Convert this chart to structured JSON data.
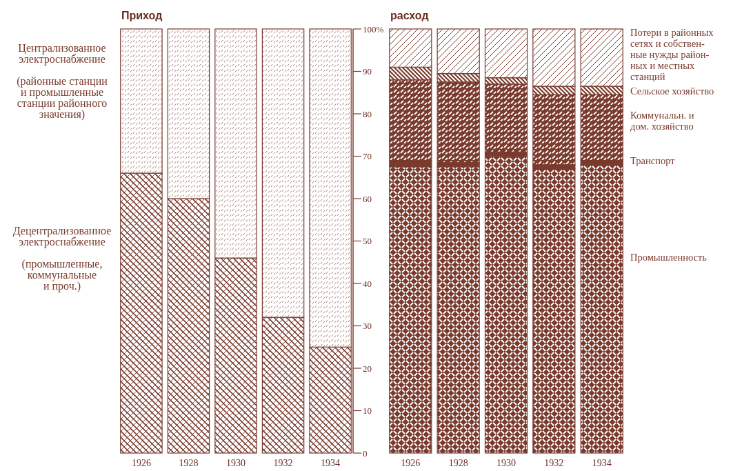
{
  "chart_data": [
    {
      "type": "bar",
      "title": "Приход",
      "stacked": true,
      "categories": [
        "1926",
        "1928",
        "1930",
        "1932",
        "1934"
      ],
      "ylim": [
        0,
        100
      ],
      "yticks": [
        0,
        10,
        20,
        30,
        40,
        50,
        60,
        70,
        80,
        90,
        {
          "value": 100,
          "label": "100%"
        }
      ],
      "series": [
        {
          "name": "Децентрализованное\nэлектроснабжение\n\n(промышленные,\nкоммунальные\nи проч.)",
          "color": "#7a3b2e",
          "values": [
            66,
            60,
            46,
            32,
            25
          ]
        },
        {
          "name": "Централизованное\nэлектроснабжение\n\n(районные станции\nи промышленные\nстанции районного\nзначения)",
          "color": "#7a3b2e",
          "values": [
            34,
            40,
            54,
            68,
            75
          ]
        }
      ]
    },
    {
      "type": "bar",
      "title": "расход",
      "stacked": true,
      "tick_labels": "x",
      "categories": [
        "1926",
        "1928",
        "1930",
        "1932",
        "1934"
      ],
      "ylim": [
        0,
        100
      ],
      "series": [
        {
          "name": "Промышленность",
          "color": "#7a3b2e",
          "values": [
            67.5,
            67.5,
            70,
            67,
            68
          ]
        },
        {
          "name": "Транспорт",
          "color": "#7a3b2e",
          "values": [
            1.5,
            1,
            1,
            1,
            1
          ]
        },
        {
          "name": "Коммунальн.  и\nдом. хозяйство",
          "color": "#7a3b2e",
          "values": [
            19,
            19,
            16,
            16.5,
            15.5
          ]
        },
        {
          "name": "Сельское хозяйство",
          "color": "#7a3b2e",
          "values": [
            3,
            2,
            1.5,
            2,
            2
          ]
        },
        {
          "name": "Потери в районных\nсетях и собствен-\nные нужды район-\nных и местных\nстанций",
          "color": "#7a3b2e",
          "values": [
            9,
            10.5,
            11.5,
            13.5,
            13.5
          ]
        }
      ]
    }
  ]
}
